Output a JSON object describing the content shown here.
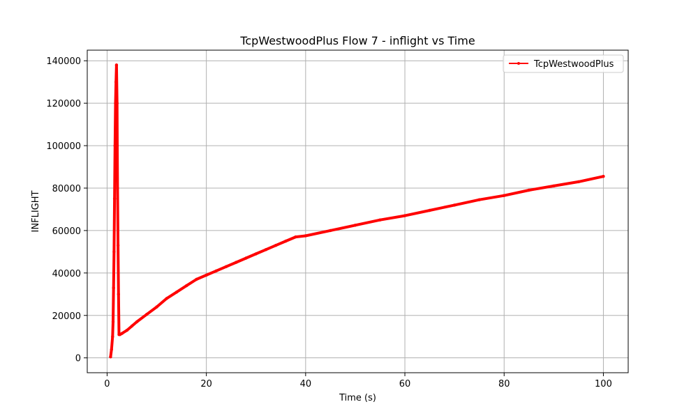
{
  "chart_data": {
    "type": "line",
    "title": "TcpWestwoodPlus Flow 7 - inflight vs Time",
    "xlabel": "Time (s)",
    "ylabel": "INFLIGHT",
    "xlim": [
      -4,
      105
    ],
    "ylim": [
      -7000,
      145000
    ],
    "xticks": [
      0,
      20,
      40,
      60,
      80,
      100
    ],
    "yticks": [
      0,
      20000,
      40000,
      60000,
      80000,
      100000,
      120000,
      140000
    ],
    "grid": true,
    "legend_position": "top-right",
    "colors": {
      "series": "#ff0000",
      "grid": "#b0b0b0",
      "axes": "#000000"
    },
    "series": [
      {
        "name": "TcpWestwoodPlus",
        "x": [
          0.7,
          0.9,
          1.1,
          1.2,
          1.3,
          1.4,
          1.5,
          1.6,
          1.7,
          1.8,
          1.9,
          2.0,
          2.05,
          2.1,
          2.2,
          2.3,
          2.4,
          2.6,
          3,
          4,
          5,
          6,
          8,
          10,
          12,
          14,
          16,
          18,
          20,
          22,
          24,
          26,
          28,
          30,
          32,
          34,
          36,
          38,
          40,
          45,
          50,
          55,
          60,
          65,
          70,
          75,
          80,
          85,
          90,
          95,
          100
        ],
        "y": [
          500,
          4000,
          10000,
          17000,
          33000,
          50000,
          75000,
          100000,
          120000,
          130000,
          138000,
          120000,
          100000,
          80000,
          53000,
          30000,
          11000,
          11000,
          11500,
          13000,
          15000,
          17000,
          20500,
          24000,
          28000,
          31000,
          34000,
          37000,
          39000,
          41000,
          43000,
          45000,
          47000,
          49000,
          51000,
          53000,
          55000,
          57000,
          57500,
          60000,
          62500,
          65000,
          67000,
          69500,
          72000,
          74500,
          76500,
          79000,
          81000,
          83000,
          85500
        ]
      }
    ]
  }
}
